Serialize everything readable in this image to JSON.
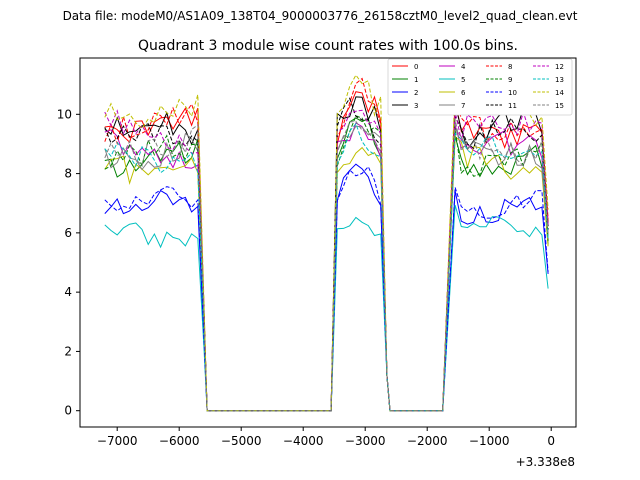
{
  "header": {
    "datafile": "Data file: modeM0/AS1A09_138T04_9000003776_26158cztM0_level2_quad_clean.evt"
  },
  "chart_data": {
    "type": "line",
    "title": "Quadrant 3 module wise count rates with 100.0s bins.",
    "xlabel": "",
    "ylabel": "",
    "x_offset_label": "+3.338e8",
    "xlim": [
      -7600,
      400
    ],
    "ylim": [
      -0.55,
      11.9
    ],
    "xticks": [
      -7000,
      -6000,
      -5000,
      -4000,
      -3000,
      -2000,
      -1000,
      0
    ],
    "xtick_labels": [
      "−7000",
      "−6000",
      "−5000",
      "−4000",
      "−3000",
      "−2000",
      "−1000",
      "0"
    ],
    "yticks": [
      0,
      2,
      4,
      6,
      8,
      10
    ],
    "ytick_labels": [
      "0",
      "2",
      "4",
      "6",
      "8",
      "10"
    ],
    "legend_position": "top-right",
    "segments": [
      {
        "start": -7200,
        "n": 16
      },
      {
        "start": -3450,
        "n": 8
      },
      {
        "start": -1550,
        "n": 16
      }
    ],
    "off_intervals": [
      [
        -5550,
        -3550
      ],
      [
        -2650,
        -1750
      ]
    ],
    "series": [
      {
        "name": "0",
        "color": "#ff0000",
        "dash": "solid",
        "base": 9.6,
        "amp": 0.5
      },
      {
        "name": "1",
        "color": "#008000",
        "dash": "solid",
        "base": 8.4,
        "amp": 0.45
      },
      {
        "name": "2",
        "color": "#0000ff",
        "dash": "solid",
        "base": 6.8,
        "amp": 0.35
      },
      {
        "name": "3",
        "color": "#000000",
        "dash": "solid",
        "base": 9.4,
        "amp": 0.5
      },
      {
        "name": "4",
        "color": "#bf00bf",
        "dash": "solid",
        "base": 8.7,
        "amp": 0.45
      },
      {
        "name": "5",
        "color": "#00bfbf",
        "dash": "solid",
        "base": 6.0,
        "amp": 0.35
      },
      {
        "name": "6",
        "color": "#bfbf00",
        "dash": "solid",
        "base": 8.3,
        "amp": 0.45
      },
      {
        "name": "7",
        "color": "#808080",
        "dash": "solid",
        "base": 8.9,
        "amp": 0.45
      },
      {
        "name": "8",
        "color": "#ff0000",
        "dash": "dashed",
        "base": 9.8,
        "amp": 0.45
      },
      {
        "name": "9",
        "color": "#008000",
        "dash": "dashed",
        "base": 8.6,
        "amp": 0.45
      },
      {
        "name": "10",
        "color": "#0000ff",
        "dash": "dashed",
        "base": 6.9,
        "amp": 0.35
      },
      {
        "name": "11",
        "color": "#000000",
        "dash": "dashed",
        "base": 9.2,
        "amp": 0.45
      },
      {
        "name": "12",
        "color": "#bf00bf",
        "dash": "dashed",
        "base": 9.4,
        "amp": 0.45
      },
      {
        "name": "13",
        "color": "#00bfbf",
        "dash": "dashed",
        "base": 8.7,
        "amp": 0.45
      },
      {
        "name": "14",
        "color": "#bfbf00",
        "dash": "dashed",
        "base": 10.3,
        "amp": 0.5
      },
      {
        "name": "15",
        "color": "#808080",
        "dash": "dashed",
        "base": 9.0,
        "amp": 0.45
      }
    ]
  }
}
